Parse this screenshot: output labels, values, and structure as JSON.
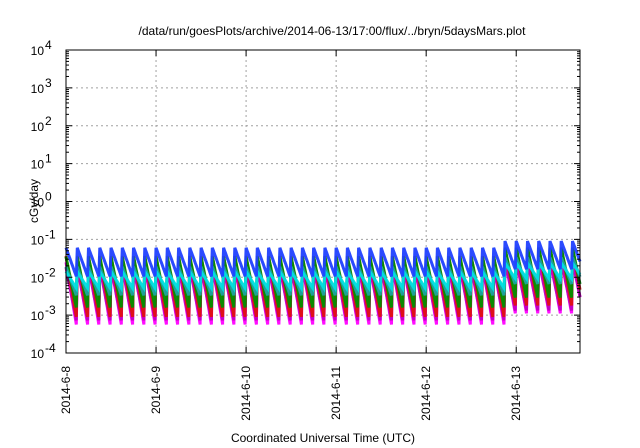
{
  "chart_data": {
    "type": "line",
    "title": "/data/run/goesPlots/archive/2014-06-13/17:00/flux/../bryn/5daysMars.plot",
    "xlabel": "Coordinated Universal Time (UTC)",
    "ylabel": "cGy/day",
    "x_start": "2014-06-08 00:00",
    "x_end": "2014-06-13 17:00",
    "x_ticks": [
      "2014-6-8",
      "2014-6-9",
      "2014-6-10",
      "2014-6-11",
      "2014-6-12",
      "2014-6-13"
    ],
    "yscale": "log",
    "ylim": [
      0.0001,
      10000
    ],
    "y_ticks": [
      {
        "mantissa": "10",
        "exp": "-4"
      },
      {
        "mantissa": "10",
        "exp": "-3"
      },
      {
        "mantissa": "10",
        "exp": "-2"
      },
      {
        "mantissa": "10",
        "exp": "-1"
      },
      {
        "mantissa": "10",
        "exp": "0"
      },
      {
        "mantissa": "10",
        "exp": "1"
      },
      {
        "mantissa": "10",
        "exp": "2"
      },
      {
        "mantissa": "10",
        "exp": "3"
      },
      {
        "mantissa": "10",
        "exp": "4"
      }
    ],
    "grid": true,
    "period_hours": 3,
    "series": [
      {
        "color": "#ff00ff",
        "peak_early": 0.025,
        "trough_early": 0.0004,
        "peak_late": 0.04,
        "trough_late": 0.0008
      },
      {
        "color": "#c000c0",
        "peak_early": 0.02,
        "trough_early": 0.0006,
        "peak_late": 0.03,
        "trough_late": 0.0011
      },
      {
        "color": "#e01010",
        "peak_early": 0.045,
        "trough_early": 0.0008,
        "peak_late": 0.075,
        "trough_late": 0.0016
      },
      {
        "color": "#009000",
        "peak_early": 0.035,
        "trough_early": 0.0012,
        "peak_late": 0.06,
        "trough_late": 0.0022
      },
      {
        "color": "#20a0a0",
        "peak_early": 0.02,
        "trough_early": 0.003,
        "peak_late": 0.035,
        "trough_late": 0.006
      },
      {
        "color": "#00e0e0",
        "peak_early": 0.015,
        "trough_early": 0.005,
        "peak_late": 0.025,
        "trough_late": 0.009
      },
      {
        "color": "#2040ff",
        "peak_early": 0.06,
        "trough_early": 0.009,
        "peak_late": 0.09,
        "trough_late": 0.014
      }
    ],
    "level_shift_at": "2014-06-12 21:00"
  }
}
